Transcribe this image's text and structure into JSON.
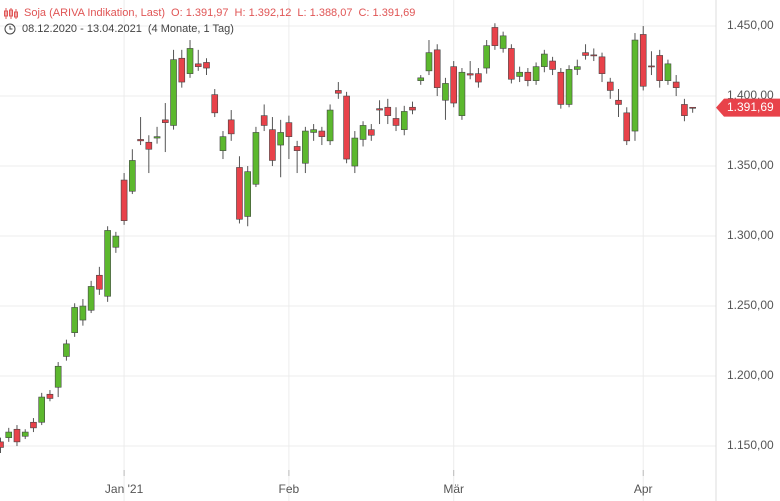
{
  "chart_data": {
    "type": "candlestick",
    "title": "Soja (ARIVA Indikation, Last)",
    "ohlc_labels": [
      "O: 1.391,97",
      "H: 1.392,12",
      "L: 1.388,07",
      "C: 1.391,69"
    ],
    "date_range": "08.12.2020 - 13.04.2021",
    "duration": "(4 Monate, 1 Tag)",
    "categories": [
      null,
      null,
      null,
      null,
      null,
      null,
      null,
      null,
      null,
      null,
      null,
      null,
      null,
      null,
      null,
      "Jan '21",
      null,
      null,
      null,
      null,
      null,
      null,
      null,
      null,
      null,
      null,
      null,
      null,
      null,
      null,
      null,
      null,
      null,
      null,
      null,
      "Feb",
      null,
      null,
      null,
      null,
      null,
      null,
      null,
      null,
      null,
      null,
      null,
      null,
      null,
      null,
      null,
      null,
      null,
      null,
      null,
      "Mär",
      null,
      null,
      null,
      null,
      null,
      null,
      null,
      null,
      null,
      null,
      null,
      null,
      null,
      null,
      null,
      null,
      null,
      null,
      null,
      null,
      null,
      null,
      "Apr",
      null,
      null,
      null,
      null,
      null,
      null
    ],
    "open": [
      1153,
      1156,
      1162,
      1157,
      1167,
      1167,
      1187,
      1192,
      1214,
      1231,
      1240,
      1247,
      1272,
      1257,
      1292,
      1340,
      1332,
      1369,
      1367,
      1370,
      1383,
      1379,
      1427,
      1416,
      1423,
      1424,
      1401,
      1361,
      1383,
      1349,
      1314,
      1337,
      1386,
      1376,
      1365,
      1381,
      1364,
      1352,
      1374,
      1375,
      1368,
      1404,
      1400,
      1350,
      1369,
      1376,
      1391,
      1392,
      1384,
      1376,
      1392,
      1411,
      1418,
      1433,
      1397,
      1421,
      1386,
      1416,
      1416,
      1420,
      1449,
      1434,
      1434,
      1414,
      1417,
      1411,
      1421,
      1425,
      1417,
      1394,
      1419,
      1431,
      1429.4,
      1428,
      1410,
      1397,
      1388,
      1375,
      1444,
      1421.5,
      1429,
      1411,
      1410,
      1394,
      1391.97
    ],
    "high": [
      1156,
      1163,
      1165,
      1162,
      1170,
      1188,
      1190,
      1210,
      1226,
      1252,
      1255,
      1268,
      1278,
      1307,
      1303,
      1345,
      1362,
      1385,
      1372,
      1378,
      1395,
      1433,
      1433,
      1440,
      1433,
      1427,
      1405,
      1375,
      1390,
      1357,
      1350,
      1378,
      1394,
      1385,
      1383,
      1386,
      1368,
      1378,
      1380,
      1378,
      1394,
      1410,
      1403,
      1375,
      1382,
      1380,
      1397,
      1398,
      1392,
      1393,
      1396,
      1415,
      1440,
      1437,
      1413,
      1425,
      1420,
      1425,
      1420,
      1440,
      1452,
      1446,
      1437,
      1421,
      1420,
      1424,
      1433,
      1428,
      1420,
      1422,
      1426,
      1437,
      1434,
      1431,
      1413,
      1405,
      1392,
      1445,
      1450,
      1432,
      1433,
      1426,
      1415,
      1398,
      1392.12
    ],
    "low": [
      1145,
      1153,
      1150,
      1155,
      1160,
      1165,
      1182,
      1185,
      1211,
      1228,
      1236,
      1245,
      1258,
      1253,
      1288,
      1308,
      1330,
      1365,
      1345,
      1366,
      1360,
      1376,
      1406,
      1413,
      1418,
      1415,
      1385,
      1355,
      1368,
      1309,
      1307,
      1335,
      1375,
      1350,
      1342,
      1355,
      1345,
      1345,
      1368,
      1365,
      1365,
      1398,
      1352,
      1345,
      1364,
      1368,
      1380,
      1380,
      1375,
      1372,
      1387,
      1408,
      1415,
      1400,
      1383,
      1392,
      1383,
      1412,
      1406,
      1416,
      1433,
      1431,
      1409,
      1410,
      1407,
      1408,
      1417,
      1415,
      1391,
      1392,
      1415,
      1426,
      1425,
      1410,
      1398,
      1385,
      1365,
      1368,
      1404,
      1415,
      1406,
      1408,
      1400,
      1382,
      1388.07
    ],
    "close": [
      1149,
      1160,
      1153,
      1160,
      1163,
      1185,
      1184,
      1207,
      1223,
      1249,
      1250,
      1264,
      1262,
      1304,
      1300,
      1311,
      1354,
      1368,
      1362,
      1371,
      1381,
      1426,
      1410,
      1434,
      1421,
      1420,
      1388,
      1371,
      1373,
      1312,
      1346,
      1374,
      1379,
      1354,
      1374,
      1371,
      1361,
      1375,
      1376,
      1371,
      1390,
      1402,
      1355,
      1370,
      1379,
      1372,
      1390,
      1386,
      1379,
      1389,
      1390,
      1413,
      1431,
      1406,
      1409,
      1395,
      1417,
      1415,
      1410,
      1436,
      1436,
      1443,
      1412,
      1417,
      1411,
      1421,
      1430,
      1419,
      1394,
      1419,
      1421,
      1429,
      1428.7,
      1416,
      1404,
      1394,
      1368,
      1440,
      1407,
      1420.8,
      1411,
      1423,
      1406,
      1386,
      1391.69
    ],
    "up_color": "#5cb82e",
    "down_color": "#e8424a",
    "last_price": {
      "value": 1391.69,
      "label": "1.391,69"
    },
    "ylim": [
      1132.9,
      1468.6
    ],
    "yticks": [
      {
        "value": 1150,
        "label": "1.150,00"
      },
      {
        "value": 1200,
        "label": "1.200,00"
      },
      {
        "value": 1250,
        "label": "1.250,00"
      },
      {
        "value": 1300,
        "label": "1.300,00"
      },
      {
        "value": 1350,
        "label": "1.350,00"
      },
      {
        "value": 1400,
        "label": "1.400,00"
      },
      {
        "value": 1450,
        "label": "1.450,00"
      }
    ],
    "grid": true
  }
}
